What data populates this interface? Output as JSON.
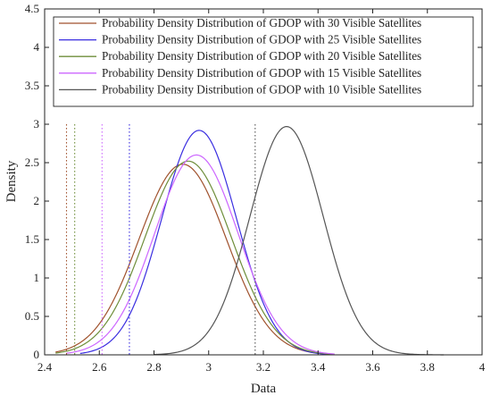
{
  "chart_data": {
    "type": "line",
    "title": "",
    "xlabel": "Data",
    "ylabel": "Density",
    "xlim": [
      2.4,
      4.0
    ],
    "ylim": [
      0,
      4.5
    ],
    "xticks": [
      "2.4",
      "2.6",
      "2.8",
      "3",
      "3.2",
      "3.4",
      "3.6",
      "3.8",
      "4"
    ],
    "yticks": [
      "0",
      "0.5",
      "1",
      "1.5",
      "2",
      "2.5",
      "3",
      "3.5",
      "4",
      "4.5"
    ],
    "grid": false,
    "legend_position": "top",
    "series": [
      {
        "name": "Probability Density Distribution of GDOP with 30 Visible Satellites",
        "color": "#a0522d",
        "mean": 2.905,
        "std": 0.16,
        "peak": 2.48,
        "x_range": [
          2.44,
          3.46
        ],
        "vline": 2.48
      },
      {
        "name": "Probability Density Distribution of GDOP with 25 Visible Satellites",
        "color": "#3a2ee0",
        "mean": 2.965,
        "std": 0.137,
        "peak": 2.92,
        "x_range": [
          2.53,
          3.43
        ],
        "vline": 2.71
      },
      {
        "name": "Probability Density Distribution of GDOP with 20 Visible Satellites",
        "color": "#6e8e3a",
        "mean": 2.925,
        "std": 0.158,
        "peak": 2.52,
        "x_range": [
          2.44,
          3.46
        ],
        "vline": 2.51
      },
      {
        "name": "Probability Density Distribution of GDOP with 15 Visible Satellites",
        "color": "#cc66ff",
        "mean": 2.955,
        "std": 0.153,
        "peak": 2.6,
        "x_range": [
          2.48,
          3.46
        ],
        "vline": 2.61
      },
      {
        "name": "Probability Density Distribution of GDOP with 10 Visible Satellites",
        "color": "#555555",
        "mean": 3.285,
        "std": 0.134,
        "peak": 2.97,
        "x_range": [
          2.8,
          3.86
        ],
        "vline": 3.17
      }
    ]
  }
}
